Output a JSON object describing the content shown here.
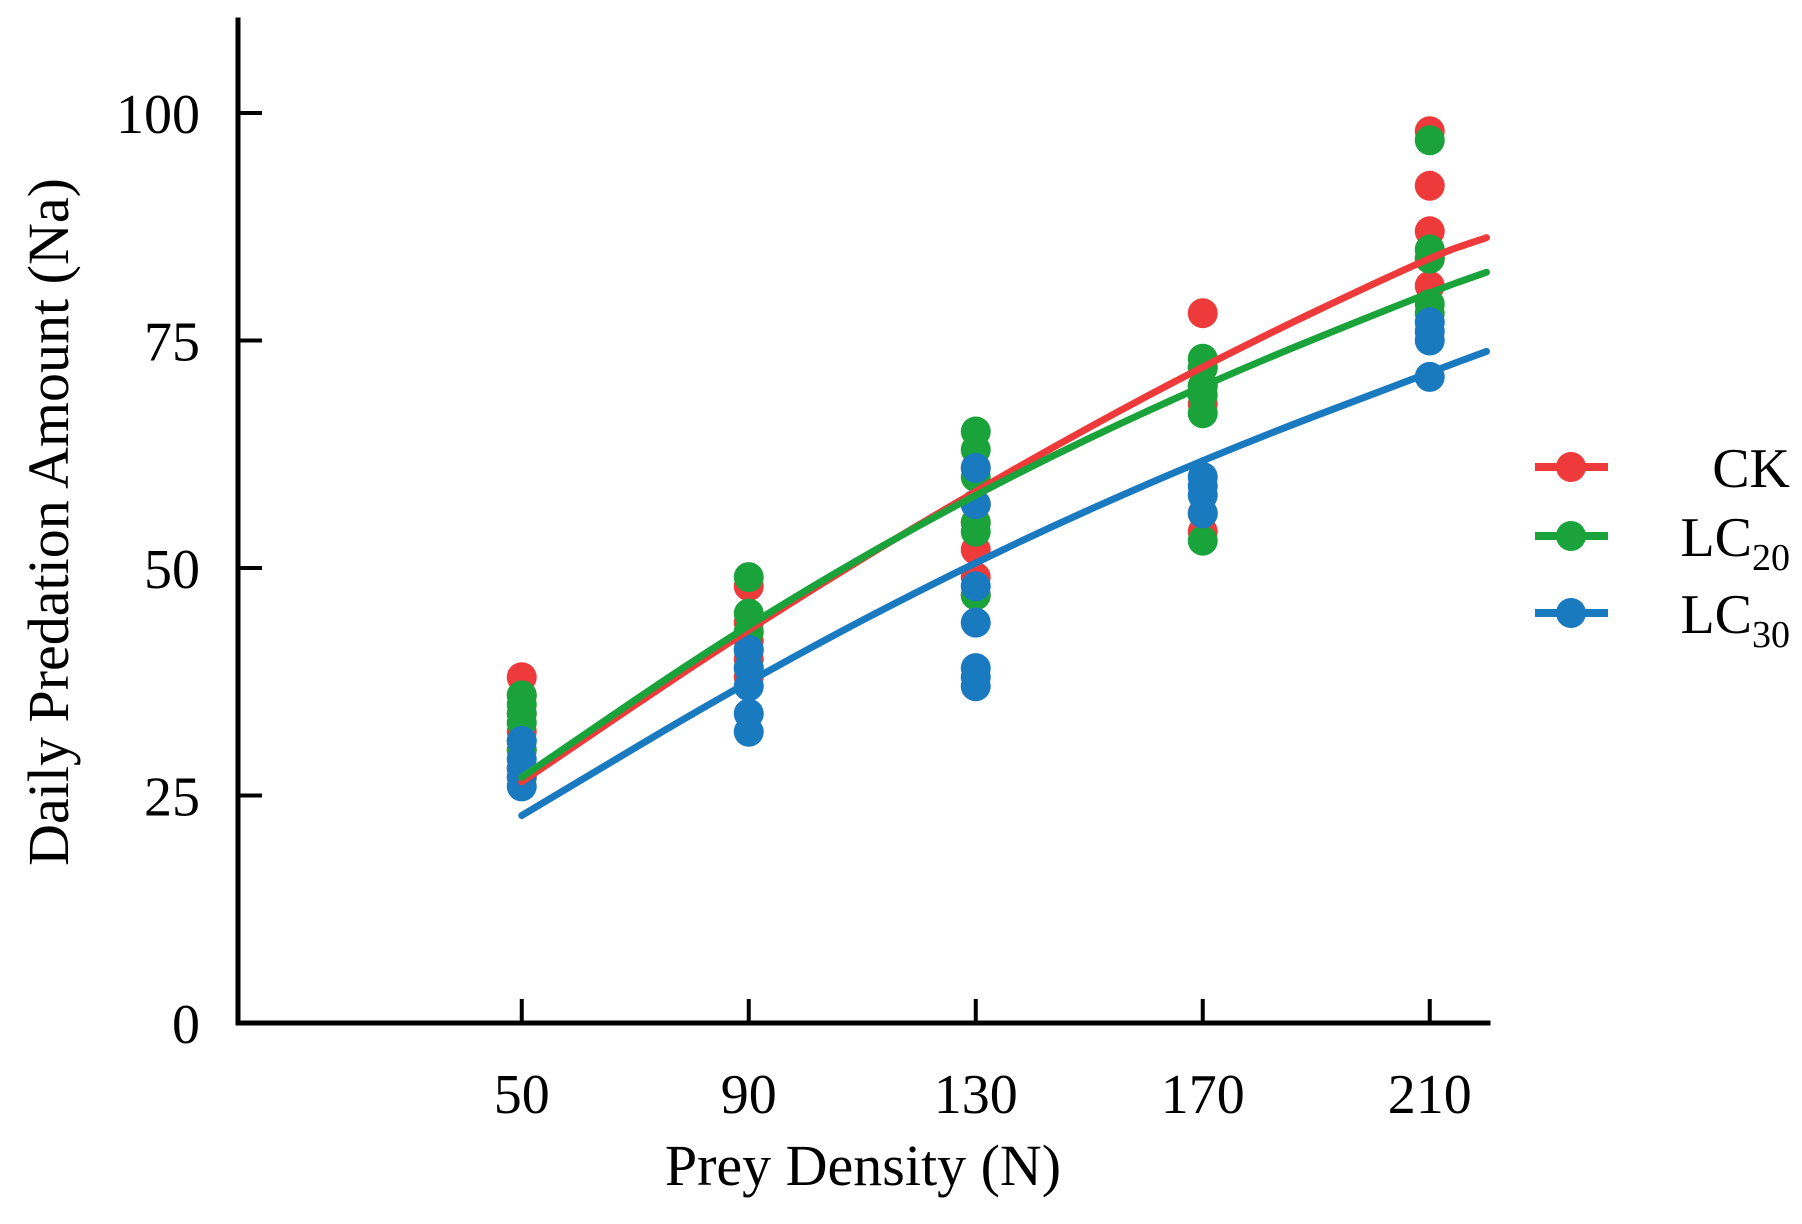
{
  "chart_data": {
    "type": "scatter",
    "xlabel": "Prey Density (N)",
    "ylabel": "Daily Predation Amount (Na)",
    "x_ticks": [
      50,
      90,
      130,
      170,
      210
    ],
    "y_ticks": [
      0,
      25,
      50,
      75,
      100
    ],
    "xlim": [
      0,
      220
    ],
    "ylim": [
      0,
      110
    ],
    "grid": false,
    "legend_position": "right",
    "series": [
      {
        "name": "CK",
        "color": "#ee3a3a",
        "points": [
          [
            50,
            38
          ],
          [
            50,
            36
          ],
          [
            50,
            34
          ],
          [
            50,
            32
          ],
          [
            50,
            30
          ],
          [
            50,
            28
          ],
          [
            50,
            27
          ],
          [
            90,
            48
          ],
          [
            90,
            44
          ],
          [
            90,
            42
          ],
          [
            90,
            40
          ],
          [
            90,
            38
          ],
          [
            130,
            61
          ],
          [
            130,
            57
          ],
          [
            130,
            55
          ],
          [
            130,
            52
          ],
          [
            130,
            49
          ],
          [
            130,
            47
          ],
          [
            170,
            78
          ],
          [
            170,
            72
          ],
          [
            170,
            70
          ],
          [
            170,
            68
          ],
          [
            170,
            56
          ],
          [
            170,
            54
          ],
          [
            210,
            98
          ],
          [
            210,
            92
          ],
          [
            210,
            87
          ],
          [
            210,
            84
          ],
          [
            210,
            81
          ]
        ],
        "fit": [
          [
            50,
            26.5
          ],
          [
            90,
            43.4
          ],
          [
            130,
            58.6
          ],
          [
            170,
            72.3
          ],
          [
            210,
            84.2
          ],
          [
            220,
            86.3
          ]
        ]
      },
      {
        "name": "LC20",
        "color": "#1aa33a",
        "points": [
          [
            50,
            36
          ],
          [
            50,
            35
          ],
          [
            50,
            34
          ],
          [
            50,
            33
          ],
          [
            50,
            31
          ],
          [
            50,
            30
          ],
          [
            90,
            49
          ],
          [
            90,
            45
          ],
          [
            90,
            43
          ],
          [
            90,
            41
          ],
          [
            90,
            39
          ],
          [
            130,
            65
          ],
          [
            130,
            63
          ],
          [
            130,
            60
          ],
          [
            130,
            57
          ],
          [
            130,
            55
          ],
          [
            130,
            54
          ],
          [
            130,
            47
          ],
          [
            170,
            73
          ],
          [
            170,
            72
          ],
          [
            170,
            70
          ],
          [
            170,
            69
          ],
          [
            170,
            67
          ],
          [
            170,
            53
          ],
          [
            210,
            97
          ],
          [
            210,
            85
          ],
          [
            210,
            84
          ],
          [
            210,
            79
          ],
          [
            210,
            78
          ]
        ],
        "fit": [
          [
            50,
            27
          ],
          [
            90,
            44
          ],
          [
            130,
            58.3
          ],
          [
            170,
            70.2
          ],
          [
            210,
            80.3
          ],
          [
            220,
            82.5
          ]
        ]
      },
      {
        "name": "LC30",
        "color": "#1a7ac0",
        "points": [
          [
            50,
            31
          ],
          [
            50,
            29
          ],
          [
            50,
            28
          ],
          [
            50,
            27
          ],
          [
            50,
            26
          ],
          [
            90,
            41
          ],
          [
            90,
            39
          ],
          [
            90,
            37
          ],
          [
            90,
            34
          ],
          [
            90,
            32
          ],
          [
            130,
            61
          ],
          [
            130,
            57
          ],
          [
            130,
            48
          ],
          [
            130,
            44
          ],
          [
            130,
            39
          ],
          [
            130,
            38
          ],
          [
            130,
            37
          ],
          [
            170,
            60
          ],
          [
            170,
            59
          ],
          [
            170,
            58
          ],
          [
            170,
            56
          ],
          [
            210,
            77
          ],
          [
            210,
            76
          ],
          [
            210,
            75
          ],
          [
            210,
            71
          ]
        ],
        "fit": [
          [
            50,
            22.8
          ],
          [
            90,
            37.7
          ],
          [
            130,
            50.8
          ],
          [
            170,
            62
          ],
          [
            210,
            71.5
          ],
          [
            220,
            73.8
          ]
        ]
      }
    ]
  },
  "legend": {
    "items": [
      {
        "main": "CK",
        "sub": "",
        "color": "#ee3a3a"
      },
      {
        "main": "LC",
        "sub": "20",
        "color": "#1aa33a"
      },
      {
        "main": "LC",
        "sub": "30",
        "color": "#1a7ac0"
      }
    ]
  }
}
